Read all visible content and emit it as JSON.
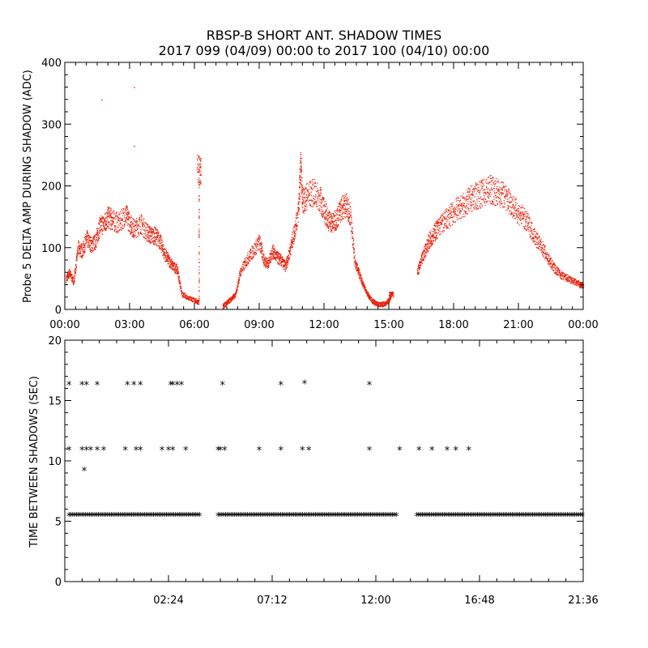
{
  "title": {
    "line1": "RBSP-B SHORT ANT. SHADOW TIMES",
    "line2": "2017 099 (04/09) 00:00 to 2017 100 (04/10) 00:00"
  },
  "chart_data": [
    {
      "type": "scatter",
      "ylabel": "Probe 5 DELTA AMP DURING SHADOW (ADC)",
      "xlim": [
        0,
        24
      ],
      "ylim": [
        0,
        400
      ],
      "xticks": [
        "00:00",
        "03:00",
        "06:00",
        "09:00",
        "12:00",
        "15:00",
        "18:00",
        "21:00",
        "00:00"
      ],
      "yticks": [
        "0",
        "100",
        "200",
        "300",
        "400"
      ],
      "marker_color": "#e8200c",
      "series": [
        {
          "x": [
            0.05,
            0.2,
            0.4,
            0.6,
            0.8,
            1.0,
            1.2,
            1.4,
            1.6,
            1.8,
            2.0,
            2.2,
            2.5,
            2.8,
            3.0,
            3.2,
            3.5,
            3.8,
            4.0,
            4.2,
            4.4,
            4.6,
            4.8,
            5.0,
            5.2,
            5.4,
            5.7,
            6.0,
            6.2,
            7.3,
            7.5,
            7.7,
            7.9,
            8.1,
            8.4,
            8.7,
            9.0,
            9.2,
            9.4,
            9.6,
            9.8,
            10.0,
            10.2,
            10.4,
            10.6,
            10.8,
            11.0,
            11.2,
            11.5,
            11.8,
            12.0,
            12.2,
            12.4,
            12.6,
            12.8,
            13.0,
            13.2,
            13.4,
            13.6,
            13.8,
            14.0,
            14.2,
            14.4,
            14.6,
            14.8,
            15.0,
            15.1,
            16.3,
            16.5,
            16.7,
            16.9,
            17.1,
            17.3,
            17.6,
            17.9,
            18.2,
            18.5,
            18.8,
            19.1,
            19.4,
            19.7,
            20.0,
            20.3,
            20.6,
            20.9,
            21.2,
            21.5,
            21.8,
            22.1,
            22.4,
            22.7,
            23.0,
            23.3,
            23.6,
            23.9,
            1.7,
            3.2,
            3.2,
            6.2,
            10.9
          ],
          "y": [
            50,
            60,
            45,
            100,
            95,
            115,
            105,
            110,
            135,
            140,
            150,
            145,
            140,
            155,
            140,
            130,
            140,
            125,
            120,
            120,
            110,
            90,
            80,
            70,
            65,
            25,
            20,
            15,
            12,
            5,
            12,
            18,
            25,
            60,
            80,
            95,
            110,
            80,
            75,
            95,
            85,
            80,
            70,
            95,
            125,
            160,
            175,
            185,
            190,
            180,
            160,
            145,
            140,
            150,
            165,
            170,
            155,
            80,
            60,
            40,
            25,
            15,
            10,
            8,
            10,
            15,
            25,
            60,
            80,
            100,
            115,
            125,
            135,
            145,
            155,
            165,
            170,
            180,
            185,
            190,
            195,
            190,
            185,
            175,
            160,
            150,
            135,
            115,
            100,
            80,
            65,
            55,
            50,
            45,
            40,
            340,
            360,
            265,
            225,
            235
          ]
        }
      ]
    },
    {
      "type": "scatter",
      "ylabel": "TIME BETWEEN SHADOWS (SEC)",
      "xlim": [
        0,
        24
      ],
      "ylim": [
        0,
        20
      ],
      "xticks": [
        "02:24",
        "07:12",
        "12:00",
        "16:48",
        "21:36"
      ],
      "yticks": [
        "0",
        "5",
        "10",
        "15",
        "20"
      ],
      "marker": "*",
      "marker_color": "#000000",
      "series": [
        {
          "x": [
            0.2,
            0.8,
            1.0,
            1.5,
            2.9,
            3.2,
            3.5,
            4.9,
            5.0,
            5.2,
            5.4,
            7.3,
            10.0,
            11.1,
            14.1,
            0.2,
            0.8,
            1.0,
            1.2,
            1.5,
            1.8,
            2.8,
            3.3,
            3.5,
            4.5,
            4.8,
            5.0,
            5.6,
            7.1,
            7.2,
            7.4,
            9.0,
            10.0,
            11.0,
            11.3,
            14.1,
            15.5,
            16.4,
            17.0,
            17.7,
            18.1,
            18.7
          ],
          "y": [
            16.3,
            16.3,
            16.3,
            16.3,
            16.3,
            16.3,
            16.3,
            16.3,
            16.3,
            16.3,
            16.3,
            16.3,
            16.3,
            16.4,
            16.3,
            10.9,
            10.9,
            10.9,
            10.9,
            10.9,
            10.9,
            10.9,
            10.9,
            10.9,
            10.9,
            10.9,
            10.9,
            10.9,
            10.9,
            10.9,
            10.9,
            10.9,
            10.9,
            10.9,
            10.9,
            10.9,
            10.9,
            10.9,
            10.9,
            10.9,
            10.9,
            10.9
          ]
        },
        {
          "x": [
            0.9
          ],
          "y": [
            9.2
          ]
        },
        {
          "segments": [
            [
              0.2,
              6.3
            ],
            [
              7.1,
              15.4
            ],
            [
              16.3,
              24.0
            ]
          ],
          "y": 5.45
        }
      ]
    }
  ]
}
